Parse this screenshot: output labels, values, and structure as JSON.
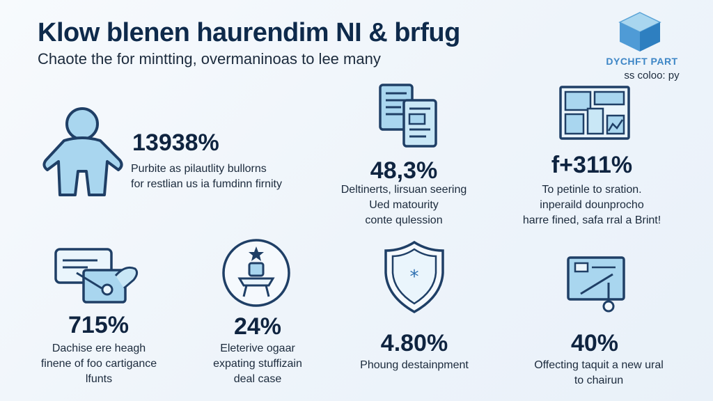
{
  "header": {
    "title": "Klow blenen haurendim NI & brfug",
    "subtitle": "Chaote the for mintting, overmaninoas to lee many"
  },
  "logo": {
    "name": "DYCHFT PART",
    "tagline": "ss coloo: py",
    "icon": "cube-icon"
  },
  "colors": {
    "accent": "#3d86c6",
    "icon_fill": "#a9d6ef",
    "icon_stroke": "#1f3f66",
    "text": "#0f2440"
  },
  "stats": [
    {
      "icon": "person-icon",
      "value": "13938%",
      "lines": [
        "Purbite as pilautlity bullorns",
        "for restlian us ia fumdinn firnity"
      ]
    },
    {
      "icon": "documents-icon",
      "value": "48,3%",
      "lines": [
        "Deltinerts, lirsuan seering",
        "Ued matourity",
        "conte qulession"
      ]
    },
    {
      "icon": "dashboard-icon",
      "value": "f+311%",
      "lines": [
        "To petinle to sration.",
        "inperaild dounprocho",
        "harre fined, safa rral a Brint!"
      ]
    },
    {
      "icon": "card-hand-icon",
      "value": "715%",
      "lines": [
        "Dachise ere heagh",
        "finene of foo cartigance",
        "lfunts"
      ]
    },
    {
      "icon": "trophy-icon",
      "value": "24%",
      "lines": [
        "Eleterive ogaar",
        "expating stuffizain",
        "deal case"
      ]
    },
    {
      "icon": "shield-icon",
      "value": "4.80%",
      "lines": [
        "Phoung destainpment"
      ]
    },
    {
      "icon": "laptop-icon",
      "value": "40%",
      "lines": [
        "Offecting taquit a new ural",
        "to chairun"
      ]
    }
  ]
}
